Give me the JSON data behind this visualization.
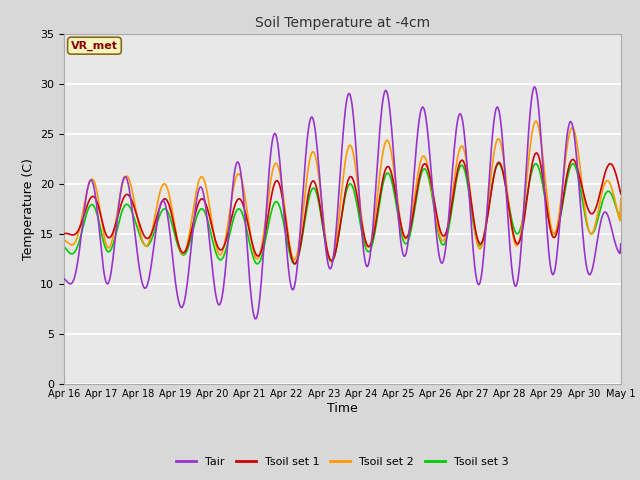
{
  "title": "Soil Temperature at -4cm",
  "xlabel": "Time",
  "ylabel": "Temperature (C)",
  "ylim": [
    0,
    35
  ],
  "xlim_days": [
    0,
    15
  ],
  "fig_bg_color": "#d8d8d8",
  "plot_bg_color": "#e8e8e8",
  "annotation_text": "VR_met",
  "annotation_bg": "#f5f5c0",
  "annotation_border": "#8b6914",
  "colors": {
    "Tair": "#9933cc",
    "Tsoil set 1": "#cc0000",
    "Tsoil set 2": "#ff9900",
    "Tsoil set 3": "#00cc00"
  },
  "legend_labels": [
    "Tair",
    "Tsoil set 1",
    "Tsoil set 2",
    "Tsoil set 3"
  ],
  "xtick_labels": [
    "Apr 16",
    "Apr 17",
    "Apr 18",
    "Apr 19",
    "Apr 20",
    "Apr 21",
    "Apr 22",
    "Apr 23",
    "Apr 24",
    "Apr 25",
    "Apr 26",
    "Apr 27",
    "Apr 28",
    "Apr 29",
    "Apr 30",
    "May 1"
  ],
  "xtick_positions": [
    0,
    1,
    2,
    3,
    4,
    5,
    6,
    7,
    8,
    9,
    10,
    11,
    12,
    13,
    14,
    15
  ],
  "tair_min": [
    10,
    10,
    10,
    7.5,
    8.3,
    6.0,
    9.0,
    11.5,
    11.5,
    12.8,
    12.5,
    10.0,
    9.5,
    11.0,
    10.5,
    13.0
  ],
  "tair_max": [
    12,
    24,
    19,
    18,
    20.5,
    23,
    26,
    27,
    30,
    29,
    27,
    27,
    28,
    30.5,
    24,
    13
  ],
  "tsoil1_min": [
    15,
    14.5,
    15,
    13,
    13.5,
    13,
    12,
    12,
    13.5,
    14.5,
    15,
    14,
    14,
    14,
    17,
    17
  ],
  "tsoil1_max": [
    15,
    20,
    18.5,
    18.5,
    18.5,
    18.5,
    21,
    20,
    21,
    22,
    22,
    22.5,
    22,
    23.5,
    22,
    22
  ],
  "tsoil2_min": [
    14,
    13.5,
    14,
    13,
    13,
    12.5,
    12.5,
    12,
    13.5,
    14.5,
    14.5,
    13.5,
    13.5,
    15,
    15,
    15
  ],
  "tsoil2_max": [
    15,
    22.5,
    20,
    20,
    21,
    21,
    22.5,
    23.5,
    24,
    24.5,
    22,
    24.5,
    24.5,
    27,
    25,
    18
  ],
  "tsoil3_min": [
    13,
    13,
    14,
    13,
    12.5,
    12,
    12,
    12,
    13,
    14,
    14,
    13.5,
    15,
    15,
    15,
    15
  ],
  "tsoil3_max": [
    15,
    19,
    17.5,
    17.5,
    17.5,
    17.5,
    18.5,
    20,
    20,
    21.5,
    21.5,
    22,
    22,
    22,
    22,
    18
  ]
}
